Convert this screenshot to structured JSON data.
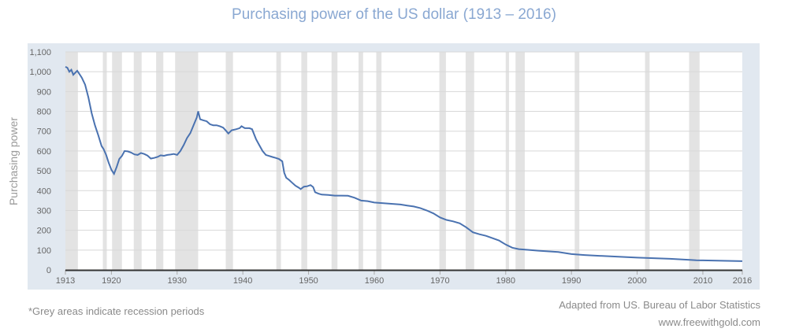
{
  "chart_data": {
    "type": "line",
    "title": "Purchasing power of the US dollar (1913 – 2016)",
    "xlabel": "",
    "ylabel": "Purchasing power",
    "xlim": [
      1913,
      2016
    ],
    "ylim": [
      0,
      1100
    ],
    "grid": true,
    "legend": "none",
    "x_ticks": [
      "1913",
      "1920",
      "1930",
      "1940",
      "1950",
      "1960",
      "1970",
      "1980",
      "1990",
      "2000",
      "2010",
      "2016"
    ],
    "y_ticks": [
      "0",
      "100",
      "200",
      "300",
      "400",
      "500",
      "600",
      "700",
      "800",
      "900",
      "1,000",
      "1,100"
    ],
    "series_color": "#4a72b0",
    "recession_color": "#e3e3e3",
    "recessions": [
      [
        1913.0,
        1914.9
      ],
      [
        1918.7,
        1919.3
      ],
      [
        1920.1,
        1921.6
      ],
      [
        1923.4,
        1924.6
      ],
      [
        1926.8,
        1927.9
      ],
      [
        1929.7,
        1933.2
      ],
      [
        1937.4,
        1938.5
      ],
      [
        1945.1,
        1945.8
      ],
      [
        1948.9,
        1949.8
      ],
      [
        1953.5,
        1954.4
      ],
      [
        1957.6,
        1958.3
      ],
      [
        1960.3,
        1961.1
      ],
      [
        1969.9,
        1970.9
      ],
      [
        1973.9,
        1975.2
      ],
      [
        1980.0,
        1980.5
      ],
      [
        1981.5,
        1982.9
      ],
      [
        1990.5,
        1991.2
      ],
      [
        2001.2,
        2001.9
      ],
      [
        2007.9,
        2009.5
      ]
    ],
    "series": [
      {
        "x": [
          1913,
          1913.3,
          1913.6,
          1913.9,
          1914.2,
          1914.5,
          1914.8,
          1915,
          1915.5,
          1916,
          1916.5,
          1917,
          1917.5,
          1918,
          1918.5,
          1918.8,
          1919.2,
          1919.6,
          1920,
          1920.4,
          1920.8,
          1921.2,
          1921.6,
          1922,
          1922.5,
          1923,
          1923.5,
          1924,
          1924.5,
          1925,
          1925.5,
          1926,
          1926.5,
          1927,
          1927.5,
          1928,
          1928.5,
          1929,
          1929.5,
          1930,
          1930.5,
          1931,
          1931.5,
          1932,
          1932.5,
          1933,
          1933.2,
          1933.5,
          1934,
          1934.5,
          1935,
          1935.5,
          1936,
          1936.5,
          1937,
          1937.5,
          1937.8,
          1938.3,
          1939,
          1939.5,
          1939.8,
          1940.3,
          1941,
          1941.4,
          1942,
          1942.5,
          1943,
          1943.5,
          1944,
          1944.5,
          1945,
          1945.5,
          1946,
          1946.3,
          1946.6,
          1947,
          1947.5,
          1948,
          1948.5,
          1948.8,
          1949.3,
          1949.8,
          1950.3,
          1950.7,
          1951,
          1951.5,
          1952,
          1953,
          1954,
          1955,
          1956,
          1957,
          1958,
          1959,
          1960,
          1962,
          1964,
          1965,
          1966,
          1967,
          1968,
          1969,
          1970,
          1971,
          1972,
          1973,
          1974,
          1975,
          1976,
          1977,
          1978,
          1979,
          1980,
          1981,
          1982,
          1983,
          1985,
          1988,
          1990,
          1992,
          1995,
          2000,
          2005,
          2008,
          2009,
          2010,
          2013,
          2016
        ],
        "y": [
          1025,
          1020,
          1000,
          1010,
          985,
          995,
          1005,
          995,
          970,
          935,
          870,
          790,
          730,
          680,
          625,
          610,
          580,
          540,
          505,
          485,
          520,
          560,
          575,
          600,
          598,
          592,
          583,
          580,
          590,
          585,
          577,
          562,
          565,
          570,
          578,
          576,
          580,
          582,
          585,
          580,
          600,
          630,
          665,
          690,
          730,
          770,
          800,
          760,
          755,
          750,
          735,
          730,
          730,
          725,
          718,
          700,
          688,
          705,
          710,
          715,
          725,
          715,
          715,
          710,
          660,
          630,
          600,
          580,
          575,
          570,
          565,
          560,
          548,
          490,
          465,
          455,
          440,
          425,
          415,
          408,
          420,
          422,
          428,
          418,
          392,
          385,
          380,
          378,
          375,
          375,
          374,
          364,
          350,
          347,
          340,
          335,
          330,
          325,
          320,
          312,
          300,
          285,
          265,
          252,
          245,
          235,
          215,
          190,
          180,
          172,
          160,
          148,
          128,
          112,
          105,
          102,
          97,
          90,
          80,
          75,
          70,
          62,
          56,
          51,
          49,
          48,
          46,
          44
        ]
      }
    ]
  },
  "footnote": "*Grey areas indicate recession periods",
  "source": "Adapted from US. Bureau of Labor Statistics",
  "website": "www.freewithgold.com"
}
